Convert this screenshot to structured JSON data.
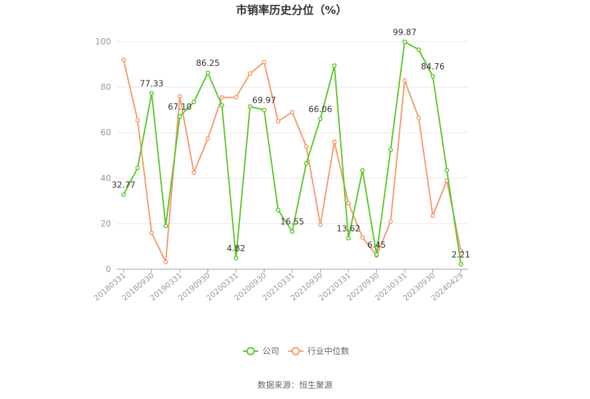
{
  "chart_data": {
    "type": "line",
    "title": "市销率历史分位（%）",
    "source": "数据来源：恒生聚源",
    "ylim": [
      0,
      100
    ],
    "yticks": [
      0,
      20,
      40,
      60,
      80,
      100
    ],
    "grid": true,
    "legend_position": "bottom",
    "x": [
      "20180331",
      "20180630",
      "20180930",
      "20181231",
      "20190331",
      "20190630",
      "20190930",
      "20191231",
      "20200331",
      "20200630",
      "20200930",
      "20201231",
      "20210331",
      "20210630",
      "20210930",
      "20211231",
      "20220331",
      "20220630",
      "20220930",
      "20221231",
      "20230331",
      "20230630",
      "20230930",
      "20231231",
      "20240429"
    ],
    "x_tick_labels": [
      "20180331",
      "20180930",
      "20190331",
      "20190930",
      "20200331",
      "20200930",
      "20210331",
      "20210930",
      "20220331",
      "20220930",
      "20230331",
      "20230930",
      "20240429"
    ],
    "series": [
      {
        "name": "公司",
        "color": "#5dc72b",
        "values": [
          32.77,
          44.5,
          77.33,
          19.0,
          67.1,
          73.5,
          86.25,
          72.0,
          4.82,
          71.5,
          69.97,
          26.0,
          16.55,
          46.5,
          66.06,
          89.5,
          13.62,
          43.5,
          6.45,
          52.5,
          99.87,
          96.5,
          84.76,
          43.5,
          2.21
        ]
      },
      {
        "name": "行业中位数",
        "color": "#f59a6e",
        "values": [
          92.0,
          65.5,
          16.0,
          3.2,
          76.0,
          42.5,
          57.5,
          75.5,
          75.5,
          86.0,
          91.0,
          65.0,
          69.0,
          54.0,
          19.5,
          56.0,
          29.0,
          14.0,
          6.0,
          21.0,
          83.0,
          66.5,
          23.5,
          39.0,
          8.0
        ]
      }
    ],
    "data_labels": [
      {
        "index": 0,
        "value": "32.77"
      },
      {
        "index": 2,
        "value": "77.33"
      },
      {
        "index": 4,
        "value": "67.10"
      },
      {
        "index": 6,
        "value": "86.25"
      },
      {
        "index": 8,
        "value": "4.82"
      },
      {
        "index": 10,
        "value": "69.97"
      },
      {
        "index": 12,
        "value": "16.55"
      },
      {
        "index": 14,
        "value": "66.06"
      },
      {
        "index": 16,
        "value": "13.62"
      },
      {
        "index": 18,
        "value": "6.45"
      },
      {
        "index": 20,
        "value": "99.87"
      },
      {
        "index": 22,
        "value": "84.76"
      },
      {
        "index": 24,
        "value": "2.21"
      }
    ]
  }
}
